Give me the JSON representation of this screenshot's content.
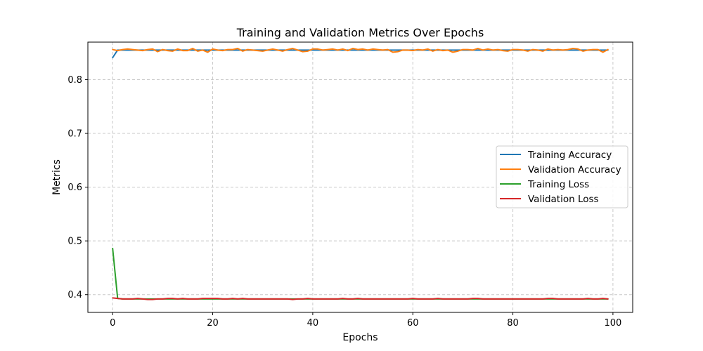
{
  "chart_data": {
    "type": "line",
    "title": "Training and Validation Metrics Over Epochs",
    "xlabel": "Epochs",
    "ylabel": "Metrics",
    "xlim": [
      -4.95,
      103.95
    ],
    "ylim": [
      0.367,
      0.8698
    ],
    "xticks": [
      0,
      20,
      40,
      60,
      80,
      100
    ],
    "yticks": [
      0.4,
      0.5,
      0.6,
      0.7,
      0.8
    ],
    "xtick_labels": [
      "0",
      "20",
      "40",
      "60",
      "80",
      "100"
    ],
    "ytick_labels": [
      "0.4",
      "0.5",
      "0.6",
      "0.7",
      "0.8"
    ],
    "grid": true,
    "legend_position": "center-right",
    "series": [
      {
        "name": "Training Accuracy",
        "color": "#1f77b4",
        "values": [
          0.841,
          0.855,
          0.855,
          0.855,
          0.855,
          0.855,
          0.855,
          0.855,
          0.855,
          0.855,
          0.855,
          0.855,
          0.855,
          0.855,
          0.855,
          0.855,
          0.855,
          0.855,
          0.855,
          0.855,
          0.855,
          0.855,
          0.855,
          0.855,
          0.855,
          0.855,
          0.855,
          0.855,
          0.855,
          0.855,
          0.855,
          0.855,
          0.855,
          0.855,
          0.855,
          0.855,
          0.855,
          0.855,
          0.855,
          0.855,
          0.855,
          0.855,
          0.855,
          0.855,
          0.855,
          0.855,
          0.855,
          0.855,
          0.855,
          0.855,
          0.855,
          0.855,
          0.855,
          0.855,
          0.855,
          0.855,
          0.855,
          0.855,
          0.855,
          0.855,
          0.855,
          0.855,
          0.855,
          0.855,
          0.855,
          0.855,
          0.855,
          0.855,
          0.855,
          0.855,
          0.855,
          0.855,
          0.855,
          0.855,
          0.855,
          0.855,
          0.855,
          0.855,
          0.855,
          0.855,
          0.855,
          0.855,
          0.855,
          0.855,
          0.855,
          0.855,
          0.855,
          0.855,
          0.855,
          0.855,
          0.855,
          0.855,
          0.855,
          0.855,
          0.855,
          0.855,
          0.855,
          0.855,
          0.855,
          0.855
        ]
      },
      {
        "name": "Validation Accuracy",
        "color": "#ff7f0e",
        "values": [
          0.856,
          0.854,
          0.856,
          0.857,
          0.856,
          0.855,
          0.854,
          0.856,
          0.857,
          0.852,
          0.856,
          0.854,
          0.853,
          0.857,
          0.854,
          0.854,
          0.858,
          0.853,
          0.855,
          0.851,
          0.857,
          0.855,
          0.854,
          0.856,
          0.856,
          0.858,
          0.853,
          0.856,
          0.855,
          0.854,
          0.853,
          0.855,
          0.857,
          0.855,
          0.853,
          0.856,
          0.858,
          0.855,
          0.852,
          0.853,
          0.857,
          0.857,
          0.855,
          0.856,
          0.857,
          0.855,
          0.857,
          0.854,
          0.858,
          0.856,
          0.857,
          0.855,
          0.857,
          0.856,
          0.855,
          0.856,
          0.851,
          0.852,
          0.855,
          0.855,
          0.854,
          0.856,
          0.855,
          0.857,
          0.853,
          0.856,
          0.854,
          0.855,
          0.851,
          0.853,
          0.856,
          0.856,
          0.855,
          0.858,
          0.855,
          0.857,
          0.855,
          0.856,
          0.854,
          0.853,
          0.856,
          0.856,
          0.855,
          0.853,
          0.856,
          0.855,
          0.853,
          0.857,
          0.855,
          0.856,
          0.855,
          0.856,
          0.858,
          0.857,
          0.853,
          0.855,
          0.856,
          0.856,
          0.851,
          0.856
        ]
      },
      {
        "name": "Training Loss",
        "color": "#2ca02c",
        "values": [
          0.486,
          0.393,
          0.392,
          0.392,
          0.392,
          0.392,
          0.392,
          0.392,
          0.392,
          0.392,
          0.392,
          0.392,
          0.392,
          0.392,
          0.392,
          0.392,
          0.392,
          0.392,
          0.392,
          0.392,
          0.392,
          0.392,
          0.392,
          0.392,
          0.392,
          0.392,
          0.392,
          0.392,
          0.392,
          0.392,
          0.392,
          0.392,
          0.392,
          0.392,
          0.392,
          0.392,
          0.392,
          0.392,
          0.392,
          0.392,
          0.392,
          0.392,
          0.392,
          0.392,
          0.392,
          0.392,
          0.392,
          0.392,
          0.392,
          0.392,
          0.392,
          0.392,
          0.392,
          0.392,
          0.392,
          0.392,
          0.392,
          0.392,
          0.392,
          0.392,
          0.392,
          0.392,
          0.392,
          0.392,
          0.392,
          0.392,
          0.392,
          0.392,
          0.392,
          0.392,
          0.392,
          0.392,
          0.392,
          0.392,
          0.392,
          0.392,
          0.392,
          0.392,
          0.392,
          0.392,
          0.392,
          0.392,
          0.392,
          0.392,
          0.392,
          0.392,
          0.392,
          0.392,
          0.392,
          0.392,
          0.392,
          0.392,
          0.392,
          0.392,
          0.392,
          0.392,
          0.392,
          0.392,
          0.392,
          0.392
        ]
      },
      {
        "name": "Validation Loss",
        "color": "#d62728",
        "values": [
          0.394,
          0.393,
          0.392,
          0.392,
          0.392,
          0.393,
          0.392,
          0.391,
          0.391,
          0.392,
          0.392,
          0.393,
          0.393,
          0.392,
          0.393,
          0.392,
          0.392,
          0.392,
          0.393,
          0.393,
          0.393,
          0.393,
          0.392,
          0.392,
          0.393,
          0.392,
          0.393,
          0.392,
          0.392,
          0.392,
          0.392,
          0.392,
          0.392,
          0.392,
          0.392,
          0.392,
          0.391,
          0.392,
          0.392,
          0.393,
          0.392,
          0.392,
          0.392,
          0.392,
          0.392,
          0.392,
          0.393,
          0.392,
          0.392,
          0.393,
          0.392,
          0.392,
          0.392,
          0.392,
          0.392,
          0.392,
          0.392,
          0.392,
          0.392,
          0.392,
          0.393,
          0.392,
          0.392,
          0.392,
          0.392,
          0.393,
          0.392,
          0.392,
          0.392,
          0.392,
          0.392,
          0.392,
          0.393,
          0.393,
          0.392,
          0.392,
          0.392,
          0.392,
          0.392,
          0.392,
          0.392,
          0.392,
          0.392,
          0.392,
          0.392,
          0.392,
          0.392,
          0.393,
          0.393,
          0.392,
          0.392,
          0.392,
          0.392,
          0.392,
          0.392,
          0.393,
          0.392,
          0.392,
          0.393,
          0.392
        ]
      }
    ]
  }
}
